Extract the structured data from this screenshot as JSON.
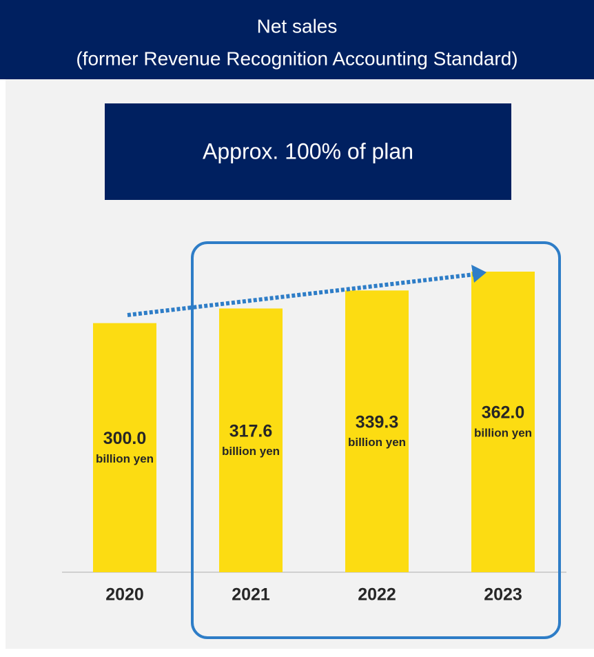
{
  "chart_data": {
    "type": "bar",
    "title": [
      "Net sales",
      "(former Revenue Recognition Accounting Standard)"
    ],
    "annotation": "Approx. 100% of plan",
    "categories": [
      "2020",
      "2021",
      "2022",
      "2023"
    ],
    "values": [
      300.0,
      317.6,
      339.3,
      362.0
    ],
    "value_labels": [
      "300.0",
      "317.6",
      "339.3",
      "362.0"
    ],
    "unit": "billion yen",
    "color": "#fcdc12"
  }
}
